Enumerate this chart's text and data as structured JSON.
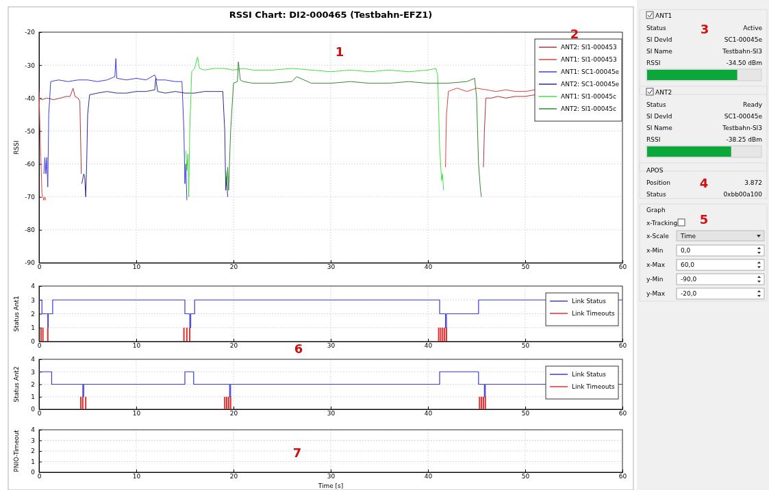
{
  "chart_data": [
    {
      "type": "line",
      "title": "RSSI Chart: DI2-000465 (Testbahn-EFZ1)",
      "ylabel": "RSSI",
      "xlim": [
        0,
        60
      ],
      "xticks": [
        0,
        10,
        20,
        30,
        40,
        50,
        60
      ],
      "ylim": [
        -90,
        -20
      ],
      "yticks": [
        -90,
        -80,
        -70,
        -60,
        -50,
        -40,
        -30,
        -20
      ],
      "grid": true,
      "legend": "top right",
      "line_style": "solid",
      "annotations": [
        "1",
        "2"
      ],
      "series": [
        {
          "name": "ANT2: SI1-000453",
          "color": "#a83838",
          "x": [
            0,
            0.3,
            0.8,
            1.5,
            2.2,
            2.8,
            3.2,
            3.5,
            3.7,
            4.0,
            4.2,
            4.35,
            20,
            45.7,
            45.8,
            45.95,
            46.5,
            47.2,
            48,
            49,
            50,
            51
          ],
          "values": [
            -40,
            -40.5,
            -40,
            -40.5,
            -40,
            -39.5,
            -39.5,
            -37,
            -39.5,
            -40,
            -41,
            -63,
            null,
            -61,
            -50,
            -40,
            -40,
            -39.5,
            -40,
            -39.5,
            -39.5,
            -39
          ]
        },
        {
          "name": "ANT1: SI1-000453",
          "color": "#e04040",
          "x": [
            0,
            0.1,
            0.3,
            0.5,
            0.6,
            0.7,
            30,
            41.8,
            41.9,
            42.1,
            42.5,
            43,
            44,
            45,
            46,
            47,
            48,
            49,
            50,
            51
          ],
          "values": [
            -38,
            -50,
            -69,
            -71,
            -70,
            -71,
            null,
            -61,
            -45,
            -38,
            -37.5,
            -37,
            -38,
            -37,
            -37.5,
            -38,
            -37.5,
            -38,
            -38,
            -37.5
          ]
        },
        {
          "name": "ANT1: SC1-00045e",
          "color": "#3a3ae0",
          "x": [
            0.5,
            0.6,
            0.7,
            0.8,
            0.9,
            1.0,
            1.2,
            2,
            3,
            4,
            5,
            6,
            7,
            7.8,
            7.9,
            8.0,
            9,
            10,
            11,
            11.9,
            12.1,
            13,
            14,
            14.7,
            14.9,
            15.0,
            15.1,
            15.2
          ],
          "values": [
            -63,
            -58,
            -63,
            -58,
            -67,
            -45,
            -35,
            -34.5,
            -35,
            -34.5,
            -34.5,
            -35,
            -34.5,
            -33.5,
            -28,
            -34,
            -34.5,
            -34,
            -34.5,
            -33,
            -34.5,
            -34.5,
            -35,
            -35,
            -50,
            -66,
            -60,
            -71
          ]
        },
        {
          "name": "ANT2: SC1-00045e",
          "color": "#2a2a90",
          "x": [
            4.4,
            4.6,
            4.7,
            4.8,
            4.9,
            5.0,
            5.2,
            6,
            7,
            8,
            9,
            10,
            11,
            11.9,
            12.0,
            12.2,
            13,
            14,
            15,
            16,
            17,
            18,
            18.9,
            19.1,
            19.2,
            19.3,
            19.4
          ],
          "values": [
            -66,
            -63,
            -64,
            -70,
            -60,
            -45,
            -39,
            -38.5,
            -38,
            -38.5,
            -38.5,
            -38,
            -38,
            -37.5,
            -34,
            -38,
            -38.5,
            -38,
            -38.5,
            -38.5,
            -38,
            -38,
            -38,
            -50,
            -68,
            -64,
            -70
          ]
        },
        {
          "name": "ANT1: SI1-00045c",
          "color": "#40e040",
          "x": [
            15.1,
            15.2,
            15.3,
            15.4,
            15.5,
            15.7,
            16,
            16.3,
            16.5,
            17,
            18,
            19,
            20,
            21,
            22,
            24,
            26,
            28,
            30,
            32,
            34,
            36,
            38,
            40,
            40.8,
            41.0,
            41.2,
            41.4,
            41.5,
            41.6
          ],
          "values": [
            -56,
            -62,
            -57,
            -70,
            -50,
            -32,
            -31,
            -27.5,
            -31,
            -31.5,
            -31,
            -31,
            -31.5,
            -31,
            -31.5,
            -31.5,
            -31,
            -31.5,
            -32,
            -31.5,
            -32,
            -31.5,
            -32,
            -31.5,
            -31,
            -33,
            -55,
            -65,
            -63,
            -68
          ]
        },
        {
          "name": "ANT2: SI1-00045c",
          "color": "#2e8b2e",
          "x": [
            19.2,
            19.3,
            19.4,
            19.5,
            19.7,
            20,
            20.4,
            20.5,
            20.7,
            21,
            22,
            24,
            26,
            26.5,
            28,
            30,
            32,
            34,
            36,
            38,
            40,
            42,
            44,
            44.8,
            45.0,
            45.2,
            45.4,
            45.5
          ],
          "values": [
            -62,
            -66,
            -61,
            -68,
            -50,
            -35.5,
            -35,
            -29,
            -34.5,
            -35,
            -35.5,
            -35.5,
            -35,
            -33.5,
            -35.5,
            -35.5,
            -35,
            -35.5,
            -35.5,
            -35,
            -35.5,
            -35.5,
            -35,
            -34,
            -40,
            -60,
            -68,
            -70
          ]
        }
      ]
    },
    {
      "type": "step",
      "ylabel": "Status Ant1",
      "xlim": [
        0,
        60
      ],
      "xticks": [
        0,
        10,
        20,
        30,
        40,
        50,
        60
      ],
      "ylim": [
        0,
        4
      ],
      "yticks": [
        0,
        1,
        2,
        3,
        4
      ],
      "grid": true,
      "legend": "top right",
      "annotations": [
        "6"
      ],
      "series": [
        {
          "name": "Link Status",
          "color": "#3a3ae0",
          "x": [
            0,
            0.3,
            0.9,
            0.95,
            1.4,
            15,
            15.5,
            15.6,
            16,
            41.2,
            41.8,
            41.9,
            45.2,
            60
          ],
          "values": [
            3,
            2,
            1,
            2,
            3,
            2,
            1,
            2,
            3,
            2,
            1,
            2,
            3,
            3
          ]
        },
        {
          "name": "Link Timeouts",
          "type": "bar",
          "color": "#e03030",
          "x": [
            0.2,
            0.4,
            0.9,
            14.9,
            15.2,
            15.5,
            41.1,
            41.3,
            41.5,
            41.7,
            41.9
          ],
          "values": [
            1,
            1,
            1,
            1,
            1,
            1,
            1,
            1,
            1,
            1,
            1
          ]
        }
      ]
    },
    {
      "type": "step",
      "ylabel": "Status Ant2",
      "xlim": [
        0,
        60
      ],
      "xticks": [
        0,
        10,
        20,
        30,
        40,
        50,
        60
      ],
      "ylim": [
        0,
        4
      ],
      "yticks": [
        0,
        1,
        2,
        3,
        4
      ],
      "grid": true,
      "legend": "top right",
      "series": [
        {
          "name": "Link Status",
          "color": "#3a3ae0",
          "x": [
            0,
            1.3,
            4.5,
            4.6,
            15,
            15.9,
            19.6,
            19.7,
            41.2,
            45.2,
            45.8,
            45.9,
            60
          ],
          "values": [
            3,
            2,
            1,
            2,
            3,
            2,
            1,
            2,
            3,
            2,
            1,
            2,
            2
          ]
        },
        {
          "name": "Link Timeouts",
          "type": "bar",
          "color": "#e03030",
          "x": [
            4.3,
            4.5,
            4.8,
            19.1,
            19.3,
            19.5,
            19.7,
            45.3,
            45.5,
            45.7,
            45.9
          ],
          "values": [
            1,
            1,
            1,
            1,
            1,
            1,
            1,
            1,
            1,
            1,
            1
          ]
        }
      ]
    },
    {
      "type": "line",
      "ylabel": "PNIO-Timeout",
      "xlabel": "Time [s]",
      "xlim": [
        0,
        60
      ],
      "xticks": [
        0,
        10,
        20,
        30,
        40,
        50,
        60
      ],
      "ylim": [
        0,
        4
      ],
      "yticks": [
        0,
        1,
        2,
        3,
        4
      ],
      "grid": true,
      "annotations": [
        "7"
      ]
    },
    {
      "type": "other",
      "annotations": [
        "ANT1",
        "Status",
        "Active",
        "SI DevId",
        "SC1-00045e",
        "SI Name",
        "Testbahn-SI3",
        "RSSI",
        "-34.50 dBm",
        "3",
        "ANT2",
        "Status",
        "Ready",
        "SI DevId",
        "SC1-00045e",
        "SI Name",
        "Testbahn-SI3",
        "RSSI",
        "-38.25 dBm",
        "APOS",
        "Position",
        "3.872",
        "Status",
        "0xbb00a100",
        "4",
        "Graph",
        "x-Tracking",
        "x-Scale",
        "Time",
        "x-Min",
        "0,0",
        "x-Max",
        "60,0",
        "y-Min",
        "-90,0",
        "y-Max",
        "-20,0",
        "5"
      ]
    }
  ]
}
